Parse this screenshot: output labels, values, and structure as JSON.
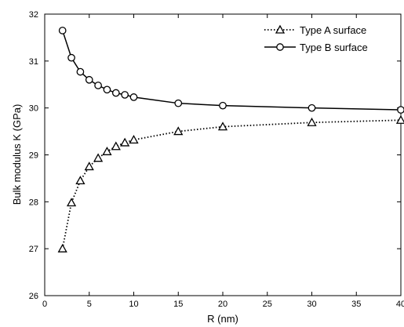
{
  "chart_data": {
    "type": "line",
    "xlabel": "R (nm)",
    "ylabel": "Bulk modulus K (GPa)",
    "xlim": [
      0,
      40
    ],
    "ylim": [
      26,
      32
    ],
    "xticks": [
      0,
      5,
      10,
      15,
      20,
      25,
      30,
      35,
      40
    ],
    "yticks": [
      26,
      27,
      28,
      29,
      30,
      31,
      32
    ],
    "grid": false,
    "legend_position": "top-right",
    "series": [
      {
        "name": "Type A surface",
        "marker": "triangle",
        "line_style": "dotted",
        "color": "#000000",
        "x": [
          2,
          3,
          4,
          5,
          6,
          7,
          8,
          9,
          10,
          15,
          20,
          30,
          40
        ],
        "y": [
          27.0,
          27.98,
          28.45,
          28.75,
          28.93,
          29.07,
          29.18,
          29.26,
          29.32,
          29.5,
          29.6,
          29.69,
          29.74
        ]
      },
      {
        "name": "Type B surface",
        "marker": "circle",
        "line_style": "solid",
        "color": "#000000",
        "x": [
          2,
          3,
          4,
          5,
          6,
          7,
          8,
          9,
          10,
          15,
          20,
          30,
          40
        ],
        "y": [
          31.65,
          31.07,
          30.77,
          30.6,
          30.48,
          30.39,
          30.32,
          30.28,
          30.23,
          30.1,
          30.05,
          30.0,
          29.96
        ]
      }
    ]
  }
}
